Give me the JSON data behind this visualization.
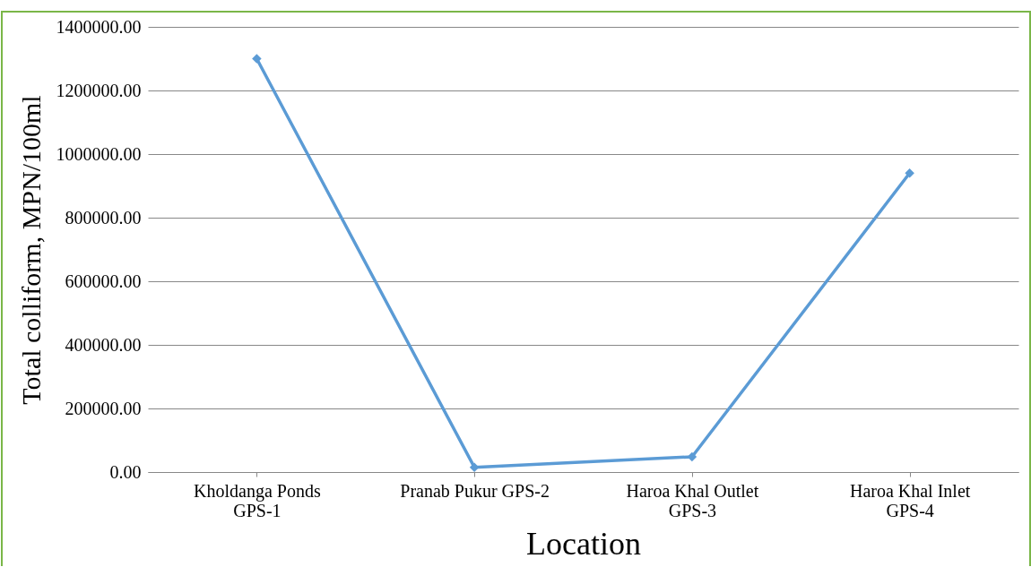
{
  "chart_data": {
    "type": "line",
    "xlabel": "Location",
    "ylabel": "Total colliform, MPN/100ml",
    "categories": [
      "Kholdanga Ponds GPS-1",
      "Pranab Pukur GPS-2",
      "Haroa Khal Outlet GPS-3",
      "Haroa Khal Inlet GPS-4"
    ],
    "series": [
      {
        "color": "#5b9bd5",
        "values": [
          1300000,
          15000,
          48000,
          940000
        ]
      }
    ],
    "ylim": [
      0,
      1400000
    ],
    "yticks": [
      {
        "value": 0,
        "label": "0.00"
      },
      {
        "value": 200000,
        "label": "200000.00"
      },
      {
        "value": 400000,
        "label": "400000.00"
      },
      {
        "value": 600000,
        "label": "600000.00"
      },
      {
        "value": 800000,
        "label": "800000.00"
      },
      {
        "value": 1000000,
        "label": "1000000.00"
      },
      {
        "value": 1200000,
        "label": "1200000.00"
      },
      {
        "value": 1400000,
        "label": "1400000.00"
      }
    ],
    "grid": "y",
    "marker": "diamond",
    "line_style": "solid"
  }
}
